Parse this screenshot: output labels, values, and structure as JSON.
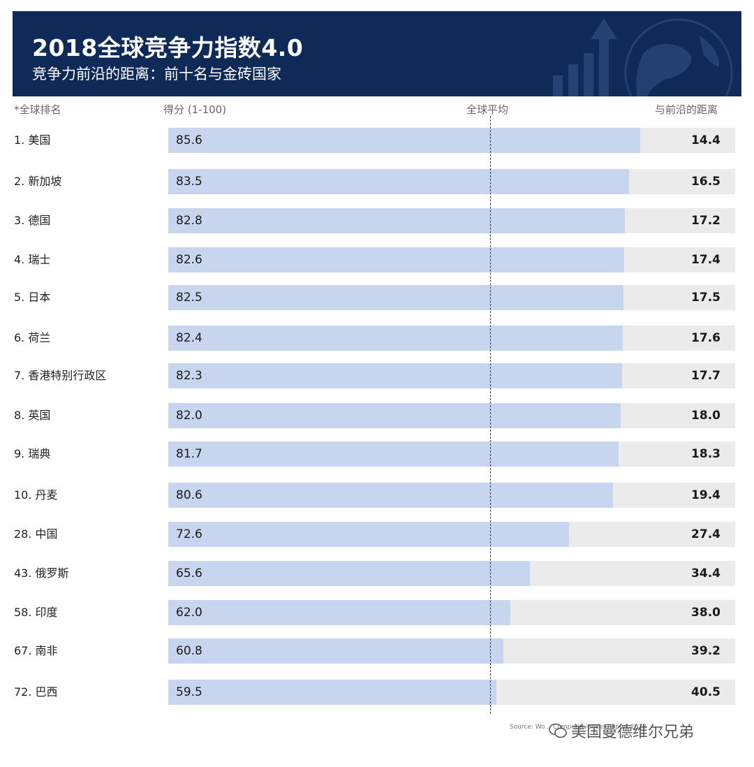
{
  "header": {
    "title": "2018全球竞争力指数4.0",
    "subtitle": "竞争力前沿的距离：前十名与金砖国家"
  },
  "columns": {
    "rank": "*全球排名",
    "score": "得分 (1-100)",
    "avg": "全球平均",
    "gap": "与前沿的距离"
  },
  "chart_data": {
    "type": "bar",
    "title": "2018全球竞争力指数4.0",
    "subtitle": "竞争力前沿的距离：前十名与金砖国家",
    "orientation": "horizontal",
    "categories": [
      "1. 美国",
      "2. 新加坡",
      "3. 德国",
      "4. 瑞士",
      "5. 日本",
      "6. 荷兰",
      "7. 香港特别行政区",
      "8. 英国",
      "9. 瑞典",
      "10. 丹麦",
      "28. 中国",
      "43. 俄罗斯",
      "58. 印度",
      "67. 南非",
      "72. 巴西"
    ],
    "series": [
      {
        "name": "得分 (1-100)",
        "values": [
          85.6,
          83.5,
          82.8,
          82.6,
          82.5,
          82.4,
          82.3,
          82.0,
          81.7,
          80.6,
          72.6,
          65.6,
          62.0,
          60.8,
          59.5
        ]
      },
      {
        "name": "与前沿的距离",
        "values": [
          14.4,
          16.5,
          17.2,
          17.4,
          17.5,
          17.6,
          17.7,
          18.0,
          18.3,
          19.4,
          27.4,
          34.4,
          38.0,
          39.2,
          40.5
        ]
      }
    ],
    "score_labels": [
      "85.6",
      "83.5",
      "82.8",
      "82.6",
      "82.5",
      "82.4",
      "82.3",
      "82.0",
      "81.7",
      "80.6",
      "72.6",
      "65.6",
      "62.0",
      "60.8",
      "59.5"
    ],
    "gap_labels": [
      "14.4",
      "16.5",
      "17.2",
      "17.4",
      "17.5",
      "17.6",
      "17.7",
      "18.0",
      "18.3",
      "19.4",
      "27.4",
      "34.4",
      "38.0",
      "39.2",
      "40.5"
    ],
    "xlim": [
      0,
      100
    ],
    "global_average": 60.0,
    "colors": {
      "score": "#c8d5ef",
      "gap": "#ebebeb",
      "header": "#0f2a57"
    }
  },
  "footer": {
    "source": "Source: Wo... Competitiveness Report 2018",
    "watermark": "美国曼德维尔兄弟"
  }
}
